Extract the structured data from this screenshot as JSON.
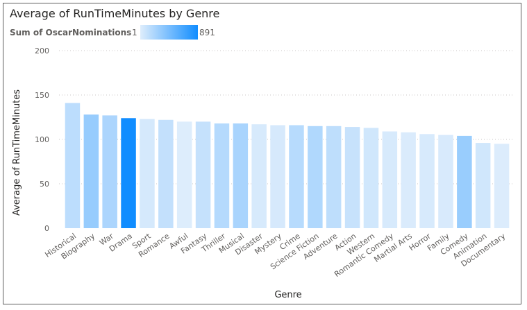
{
  "chart_data": {
    "type": "bar",
    "title": "Average of RunTimeMinutes by Genre",
    "xlabel": "Genre",
    "ylabel": "Average of RunTimeMinutes",
    "ylim": [
      0,
      200
    ],
    "yticks": [
      0,
      50,
      100,
      150,
      200
    ],
    "grid": true,
    "color_legend": {
      "label": "Sum of OscarNominations",
      "min": 1,
      "max": 891,
      "min_label": "1",
      "max_label": "891",
      "color_min": "#deedfc",
      "color_max": "#118dff"
    },
    "categories": [
      "Historical",
      "Biography",
      "War",
      "Drama",
      "Sport",
      "Romance",
      "Awful",
      "Fantasy",
      "Thriller",
      "Musical",
      "Disaster",
      "Mystery",
      "Crime",
      "Science Fiction",
      "Adventure",
      "Action",
      "Western",
      "Romantic Comedy",
      "Martial Arts",
      "Horror",
      "Family",
      "Comedy",
      "Animation",
      "Documentary"
    ],
    "values": [
      141,
      128,
      127,
      124,
      123,
      122,
      120,
      120,
      118,
      118,
      117,
      116,
      116,
      115,
      115,
      114,
      113,
      109,
      108,
      106,
      105,
      104,
      96,
      95
    ],
    "color_values": [
      150,
      310,
      220,
      891,
      40,
      120,
      5,
      110,
      180,
      230,
      30,
      35,
      170,
      200,
      140,
      100,
      60,
      30,
      20,
      30,
      25,
      300,
      60,
      10
    ]
  }
}
